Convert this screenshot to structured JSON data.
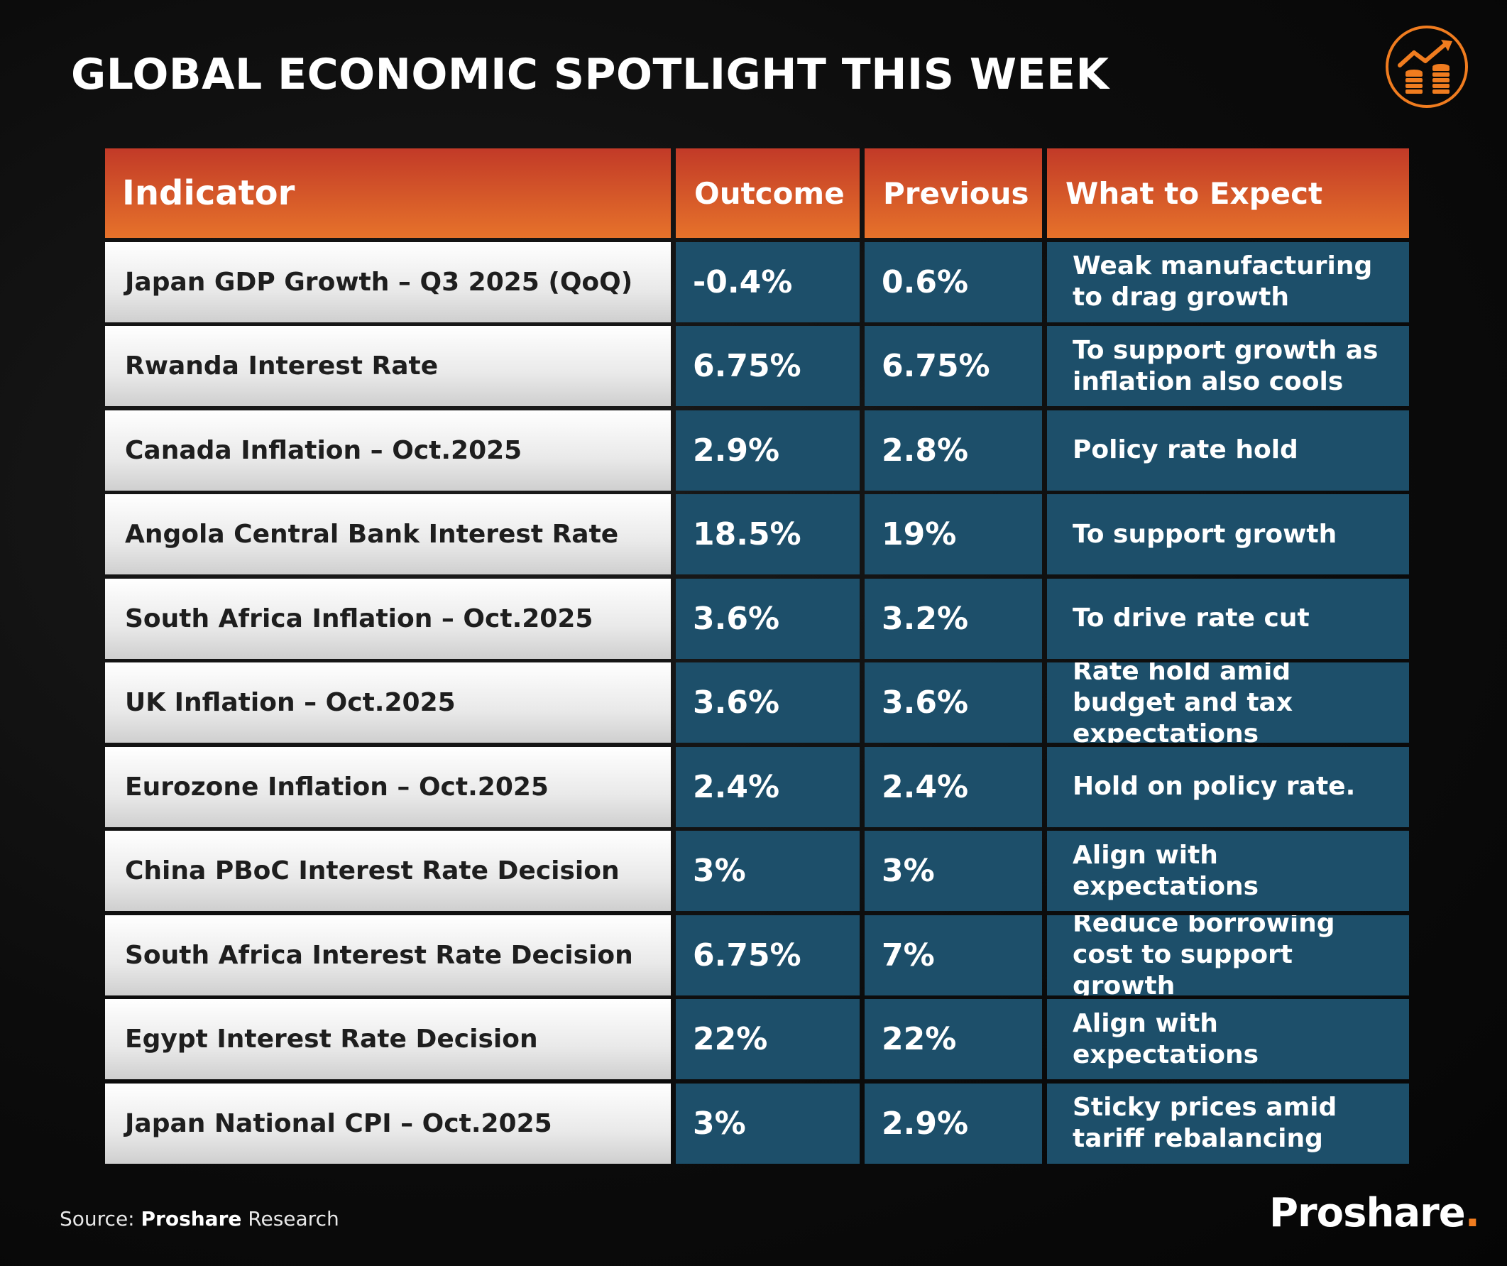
{
  "title": "GLOBAL ECONOMIC SPOTLIGHT THIS WEEK",
  "icon": {
    "name": "growth-chart-coins-icon",
    "accent": "#f07c1f"
  },
  "table": {
    "headers": [
      "Indicator",
      "Outcome",
      "Previous",
      "What to Expect"
    ],
    "rows": [
      {
        "indicator": "Japan GDP Growth – Q3 2025 (QoQ)",
        "outcome": "-0.4%",
        "previous": "0.6%",
        "expect": "Weak manufacturing to drag growth"
      },
      {
        "indicator": "Rwanda Interest Rate",
        "outcome": "6.75%",
        "previous": "6.75%",
        "expect": "To support growth as inflation also cools"
      },
      {
        "indicator": "Canada Inflation – Oct.2025",
        "outcome": "2.9%",
        "previous": "2.8%",
        "expect": "Policy rate hold"
      },
      {
        "indicator": "Angola Central Bank Interest Rate",
        "outcome": "18.5%",
        "previous": "19%",
        "expect": "To support growth"
      },
      {
        "indicator": "South Africa Inflation – Oct.2025",
        "outcome": "3.6%",
        "previous": "3.2%",
        "expect": "To drive rate cut"
      },
      {
        "indicator": "UK Inflation – Oct.2025",
        "outcome": "3.6%",
        "previous": "3.6%",
        "expect": "Rate hold amid budget and tax expectations"
      },
      {
        "indicator": "Eurozone Inflation – Oct.2025",
        "outcome": "2.4%",
        "previous": "2.4%",
        "expect": "Hold on policy rate."
      },
      {
        "indicator": "China PBoC Interest Rate Decision",
        "outcome": "3%",
        "previous": "3%",
        "expect": "Align with expectations"
      },
      {
        "indicator": "South Africa Interest Rate Decision",
        "outcome": "6.75%",
        "previous": "7%",
        "expect": "Reduce borrowing cost to support growth"
      },
      {
        "indicator": "Egypt Interest Rate Decision",
        "outcome": "22%",
        "previous": "22%",
        "expect": "Align with expectations"
      },
      {
        "indicator": "Japan National CPI – Oct.2025",
        "outcome": "3%",
        "previous": "2.9%",
        "expect": "Sticky prices amid tariff rebalancing"
      }
    ]
  },
  "source": {
    "prefix": "Source:",
    "brand": "Proshare",
    "suffix": "Research"
  },
  "brand": {
    "name": "Proshare",
    "dot": "."
  },
  "colors": {
    "header_top": "#c23a28",
    "header_bottom": "#e6722a",
    "value_cell": "#1d4f6a",
    "accent": "#f07c1f"
  }
}
